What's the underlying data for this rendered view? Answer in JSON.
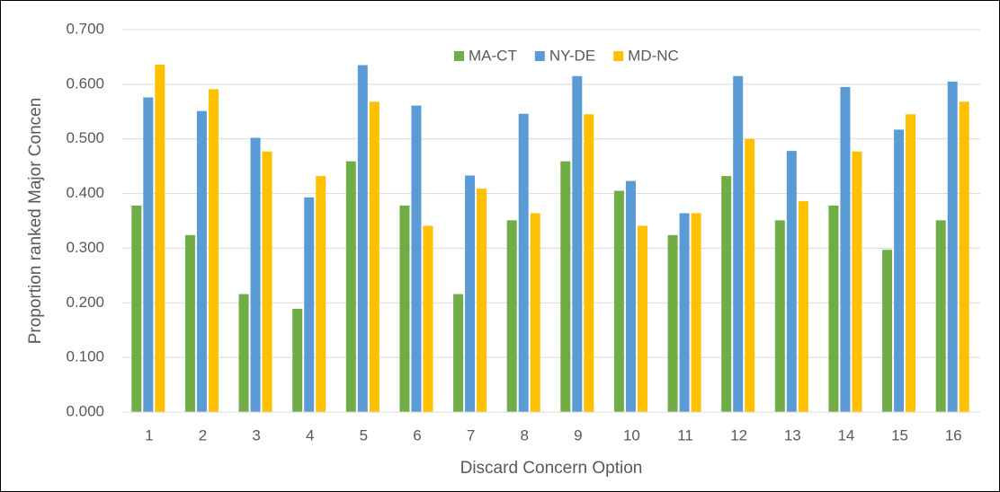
{
  "chart_data": {
    "type": "bar",
    "x_label": "Discard Concern Option",
    "y_label": "Proportion ranked Major Concen",
    "categories": [
      "1",
      "2",
      "3",
      "4",
      "5",
      "6",
      "7",
      "8",
      "9",
      "10",
      "11",
      "12",
      "13",
      "14",
      "15",
      "16"
    ],
    "series": [
      {
        "name": "MA-CT",
        "color": "#70ad47",
        "values": [
          0.378,
          0.324,
          0.216,
          0.189,
          0.459,
          0.378,
          0.216,
          0.351,
          0.459,
          0.405,
          0.324,
          0.432,
          0.351,
          0.378,
          0.297,
          0.351
        ]
      },
      {
        "name": "NY-DE",
        "color": "#5b9bd5",
        "values": [
          0.576,
          0.551,
          0.502,
          0.393,
          0.635,
          0.561,
          0.433,
          0.546,
          0.615,
          0.423,
          0.364,
          0.615,
          0.478,
          0.595,
          0.517,
          0.605
        ]
      },
      {
        "name": "MD-NC",
        "color": "#ffc000",
        "values": [
          0.636,
          0.591,
          0.477,
          0.432,
          0.568,
          0.341,
          0.409,
          0.364,
          0.545,
          0.341,
          0.364,
          0.5,
          0.386,
          0.477,
          0.545,
          0.568
        ]
      }
    ],
    "ylim": [
      0,
      0.7
    ],
    "yticks": [
      {
        "value": 0,
        "label": "0.000"
      },
      {
        "value": 0.1,
        "label": "0.100"
      },
      {
        "value": 0.2,
        "label": "0.200"
      },
      {
        "value": 0.3,
        "label": "0.300"
      },
      {
        "value": 0.4,
        "label": "0.400"
      },
      {
        "value": 0.5,
        "label": "0.500"
      },
      {
        "value": 0.6,
        "label": "0.600"
      },
      {
        "value": 0.7,
        "label": "0.700"
      }
    ],
    "grid": true,
    "legend": "top"
  }
}
